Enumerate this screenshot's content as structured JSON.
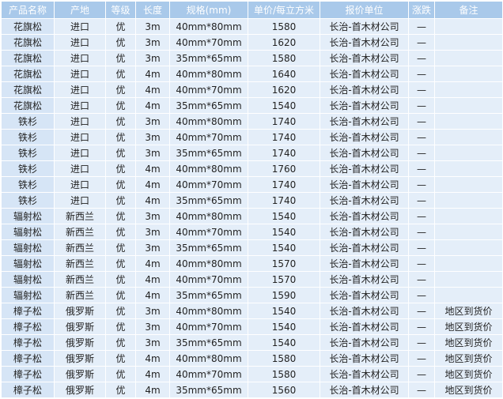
{
  "table": {
    "header": [
      "产品名称",
      "产地",
      "等级",
      "长度",
      "规格(mm)",
      "单价/每立方米",
      "报价单位",
      "涨跌",
      "备注"
    ],
    "rows": [
      [
        "花旗松",
        "进口",
        "优",
        "3m",
        "40mm*80mm",
        1580,
        "长治-首木材公司",
        "—",
        null
      ],
      [
        "花旗松",
        "进口",
        "优",
        "3m",
        "40mm*70mm",
        1620,
        "长治-首木材公司",
        "—",
        null
      ],
      [
        "花旗松",
        "进口",
        "优",
        "3m",
        "35mm*65mm",
        1580,
        "长治-首木材公司",
        "—",
        null
      ],
      [
        "花旗松",
        "进口",
        "优",
        "4m",
        "40mm*80mm",
        1640,
        "长治-首木材公司",
        "—",
        null
      ],
      [
        "花旗松",
        "进口",
        "优",
        "4m",
        "40mm*70mm",
        1620,
        "长治-首木材公司",
        "—",
        null
      ],
      [
        "花旗松",
        "进口",
        "优",
        "4m",
        "35mm*65mm",
        1540,
        "长治-首木材公司",
        "—",
        null
      ],
      [
        "铁杉",
        "进口",
        "优",
        "3m",
        "40mm*80mm",
        1740,
        "长治-首木材公司",
        "—",
        null
      ],
      [
        "铁杉",
        "进口",
        "优",
        "3m",
        "40mm*70mm",
        1740,
        "长治-首木材公司",
        "—",
        null
      ],
      [
        "铁杉",
        "进口",
        "优",
        "3m",
        "35mm*65mm",
        1740,
        "长治-首木材公司",
        "—",
        null
      ],
      [
        "铁杉",
        "进口",
        "优",
        "4m",
        "40mm*80mm",
        1760,
        "长治-首木材公司",
        "—",
        null
      ],
      [
        "铁杉",
        "进口",
        "优",
        "4m",
        "40mm*70mm",
        1740,
        "长治-首木材公司",
        "—",
        null
      ],
      [
        "铁杉",
        "进口",
        "优",
        "4m",
        "35mm*65mm",
        1740,
        "长治-首木材公司",
        "—",
        null
      ],
      [
        "辐射松",
        "新西兰",
        "优",
        "3m",
        "40mm*80mm",
        1540,
        "长治-首木材公司",
        "—",
        null
      ],
      [
        "辐射松",
        "新西兰",
        "优",
        "3m",
        "40mm*70mm",
        1540,
        "长治-首木材公司",
        "—",
        null
      ],
      [
        "辐射松",
        "新西兰",
        "优",
        "3m",
        "35mm*65mm",
        1540,
        "长治-首木材公司",
        "—",
        null
      ],
      [
        "辐射松",
        "新西兰",
        "优",
        "4m",
        "40mm*80mm",
        1570,
        "长治-首木材公司",
        "—",
        null
      ],
      [
        "辐射松",
        "新西兰",
        "优",
        "4m",
        "40mm*70mm",
        1570,
        "长治-首木材公司",
        "—",
        null
      ],
      [
        "辐射松",
        "新西兰",
        "优",
        "4m",
        "35mm*65mm",
        1590,
        "长治-首木材公司",
        "—",
        null
      ],
      [
        "樟子松",
        "俄罗斯",
        "优",
        "3m",
        "40mm*80mm",
        1540,
        "长治-首木材公司",
        "—",
        "地区到货价"
      ],
      [
        "樟子松",
        "俄罗斯",
        "优",
        "3m",
        "40mm*70mm",
        1540,
        "长治-首木材公司",
        "—",
        "地区到货价"
      ],
      [
        "樟子松",
        "俄罗斯",
        "优",
        "3m",
        "35mm*65mm",
        1540,
        "长治-首木材公司",
        "—",
        "地区到货价"
      ],
      [
        "樟子松",
        "俄罗斯",
        "优",
        "4m",
        "40mm*80mm",
        1580,
        "长治-首木材公司",
        "—",
        "地区到货价"
      ],
      [
        "樟子松",
        "俄罗斯",
        "优",
        "4m",
        "40mm*70mm",
        1580,
        "长治-首木材公司",
        "—",
        "地区到货价"
      ],
      [
        "樟子松",
        "俄罗斯",
        "优",
        "4m",
        "35mm*65mm",
        1560,
        "长治-首木材公司",
        "—",
        "地区到货价"
      ]
    ]
  }
}
